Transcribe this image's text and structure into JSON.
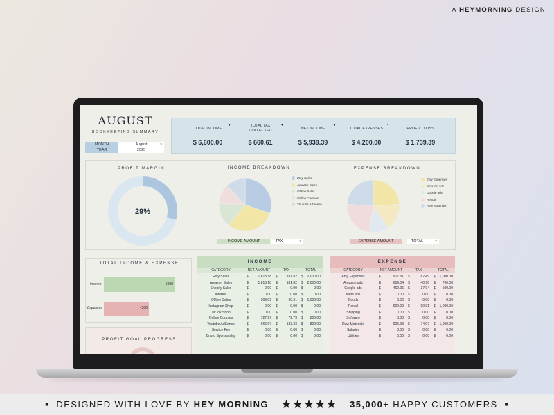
{
  "brand_top": {
    "prefix": "A",
    "name": "HEYMORNING",
    "suffix": "DESIGN"
  },
  "footer": {
    "left_text": "DESIGNED WITH LOVE BY",
    "brand": "HEY MORNING",
    "stars": "★★★★★",
    "customers_count": "35,000+",
    "customers_text": "HAPPY CUSTOMERS"
  },
  "dashboard": {
    "title": "AUGUST",
    "subtitle": "BOOKKEEPING SUMMARY",
    "month_label": "MONTH",
    "month_value": "August",
    "year_label": "YEAR",
    "year_value": "2025",
    "kpis": [
      {
        "label": "TOTAL INCOME",
        "value": "$ 6,600.00"
      },
      {
        "label": "TOTAL TAX COLLECTED",
        "value": "$ 660.61"
      },
      {
        "label": "NET INCOME",
        "value": "$ 5,939.39"
      },
      {
        "label": "TOTAL EXPENSES",
        "value": "$ 4,200.00"
      },
      {
        "label": "PROFIT / LOSS",
        "value": "$ 1,739.39"
      }
    ],
    "profit_margin": {
      "title": "PROFIT MARGIN",
      "value_text": "29%",
      "fraction": 0.29
    },
    "income_breakdown": {
      "title": "INCOME BREAKDOWN",
      "legend": [
        "Etsy Sales",
        "Amazon Sales",
        "Offline Sales",
        "Online Courses",
        "Youtube AdSense"
      ],
      "chip_label": "INCOME AMOUNT",
      "dropdown_value": "TAX"
    },
    "expense_breakdown": {
      "title": "EXPENSE BREAKDOWN",
      "legend": [
        "Etsy Expenses",
        "Amazon ads",
        "Google ads",
        "Rental",
        "Raw Materials"
      ],
      "chip_label": "EXPENSE AMOUNT",
      "dropdown_value": "TOTAL"
    },
    "total_income_expense": {
      "title": "TOTAL INCOME & EXPENSE",
      "bars": [
        {
          "label": "Income",
          "value": 6600,
          "value_text": "6600"
        },
        {
          "label": "Expenses",
          "value": 4200,
          "value_text": "4200"
        }
      ]
    },
    "profit_goal": {
      "title": "PROFIT GOAL PROGRESS"
    },
    "income_table": {
      "title": "INCOME",
      "columns": [
        "CATEGORY",
        "NET AMOUNT",
        "TAX",
        "TOTAL"
      ],
      "rows": [
        [
          "Etsy Sales",
          "1,818.18",
          "181.82",
          "2,000.00"
        ],
        [
          "Amazon Sales",
          "1,818.18",
          "181.82",
          "2,000.00"
        ],
        [
          "Shopify Sales",
          "0.00",
          "0.00",
          "0.00"
        ],
        [
          "Interest",
          "0.00",
          "0.00",
          "0.00"
        ],
        [
          "Offline Sales",
          "909.09",
          "90.91",
          "1,000.00"
        ],
        [
          "Instagram Shop",
          "0.00",
          "0.00",
          "0.00"
        ],
        [
          "TikTok Shop",
          "0.00",
          "0.00",
          "0.00"
        ],
        [
          "Online Courses",
          "727.27",
          "72.73",
          "800.00"
        ],
        [
          "Youtube AdSense",
          "666.67",
          "133.33",
          "800.00"
        ],
        [
          "Service Fee",
          "0.00",
          "0.00",
          "0.00"
        ],
        [
          "Brand Sponsorship",
          "0.00",
          "0.00",
          "0.00"
        ]
      ]
    },
    "expense_table": {
      "title": "EXPENSE",
      "columns": [
        "CATEGORY",
        "NET AMOUNT",
        "TAX",
        "TOTAL"
      ],
      "rows": [
        [
          "Etsy Expenses",
          "917.51",
          "82.49",
          "1,000.00"
        ],
        [
          "Amazon ads",
          "659.04",
          "40.96",
          "700.00"
        ],
        [
          "Google ads",
          "462.96",
          "37.04",
          "500.00"
        ],
        [
          "Meta ads",
          "0.00",
          "0.00",
          "0.00"
        ],
        [
          "Goods",
          "0.00",
          "0.00",
          "0.00"
        ],
        [
          "Rental",
          "909.09",
          "90.91",
          "1,000.00"
        ],
        [
          "Shipping",
          "0.00",
          "0.00",
          "0.00"
        ],
        [
          "Software",
          "0.00",
          "0.00",
          "0.00"
        ],
        [
          "Raw Materials",
          "925.93",
          "74.07",
          "1,000.00"
        ],
        [
          "Salaries",
          "0.00",
          "0.00",
          "0.00"
        ],
        [
          "Utilities",
          "0.00",
          "0.00",
          "0.00"
        ]
      ]
    },
    "currency_symbol": "$"
  },
  "colors": {
    "kpi_panel": "#d6e4ea",
    "income_header": "#c9ddc2",
    "expense_header": "#e6bcbc",
    "pie": [
      "#b8cde3",
      "#f1e6a6",
      "#d8e6d3",
      "#f0dede",
      "#cfdbe8"
    ],
    "donut_fill": "#adc6e0",
    "donut_track": "#dbe7f0",
    "bar_income": "#bcd8b3",
    "bar_expense": "#e5b3b3"
  }
}
